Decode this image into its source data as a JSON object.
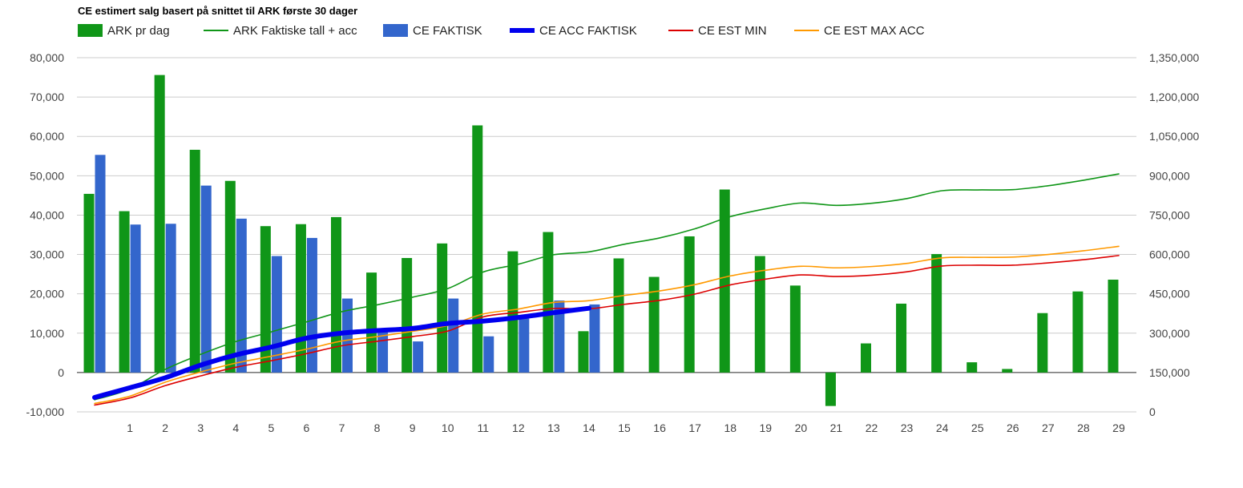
{
  "chart_data": {
    "type": "bar",
    "title": "CE estimert salg basert på snittet til ARK første 30 dager",
    "xlabel": "",
    "ylabel": "",
    "categories": [
      "",
      "1",
      "2",
      "3",
      "4",
      "5",
      "6",
      "7",
      "8",
      "9",
      "10",
      "11",
      "12",
      "13",
      "14",
      "15",
      "16",
      "17",
      "18",
      "19",
      "20",
      "21",
      "22",
      "23",
      "24",
      "25",
      "26",
      "27",
      "28",
      "29"
    ],
    "ylim": [
      -10000,
      80000
    ],
    "y_ticks": [
      -10000,
      0,
      10000,
      20000,
      30000,
      40000,
      50000,
      60000,
      70000,
      80000
    ],
    "y_tick_labels": [
      "-10,000",
      "0",
      "10,000",
      "20,000",
      "30,000",
      "40,000",
      "50,000",
      "60,000",
      "70,000",
      "80,000"
    ],
    "y2lim": [
      0,
      1350000
    ],
    "y2_ticks": [
      0,
      150000,
      300000,
      450000,
      600000,
      750000,
      900000,
      1050000,
      1200000,
      1350000
    ],
    "y2_tick_labels": [
      "0",
      "150,000",
      "300,000",
      "450,000",
      "600,000",
      "750,000",
      "900,000",
      "1,050,000",
      "1,200,000",
      "1,350,000"
    ],
    "grid": true,
    "legend_position": "top-left",
    "series": [
      {
        "name": "ARK pr dag",
        "kind": "bar",
        "axis": "left",
        "color": "#109618",
        "values": [
          45400,
          41000,
          75600,
          56600,
          48700,
          37200,
          37700,
          39500,
          25400,
          29100,
          32800,
          62800,
          30800,
          35700,
          10500,
          29000,
          24300,
          34600,
          46500,
          29600,
          22100,
          -8500,
          7400,
          17500,
          30100,
          2600,
          900,
          15100,
          20600,
          23600
        ]
      },
      {
        "name": "CE FAKTISK",
        "kind": "bar",
        "axis": "left",
        "color": "#3366cc",
        "values": [
          55300,
          37600,
          37800,
          47500,
          39100,
          29600,
          34200,
          18800,
          10600,
          7900,
          18800,
          9200,
          13700,
          18300,
          17300,
          null,
          null,
          null,
          null,
          null,
          null,
          null,
          null,
          null,
          null,
          null,
          null,
          null,
          null,
          null
        ]
      },
      {
        "name": "ARK Faktiske tall + acc",
        "kind": "line",
        "axis": "right",
        "color": "#109618",
        "width": 1.6,
        "values": [
          46000,
          87000,
          162000,
          219000,
          268000,
          305000,
          343000,
          382000,
          408000,
          437000,
          470000,
          533000,
          563000,
          599000,
          610000,
          639000,
          663000,
          698000,
          744000,
          774000,
          796000,
          787000,
          795000,
          813000,
          843000,
          846000,
          847000,
          862000,
          883000,
          907000
        ]
      },
      {
        "name": "CE ACC FAKTISK",
        "kind": "line",
        "axis": "right",
        "color": "#0000ee",
        "width": 6,
        "values": [
          55000,
          92000,
          130000,
          178000,
          217000,
          247000,
          281000,
          300000,
          310000,
          318000,
          337000,
          346000,
          360000,
          378000,
          395000,
          null,
          null,
          null,
          null,
          null,
          null,
          null,
          null,
          null,
          null,
          null,
          null,
          null,
          null,
          null
        ]
      },
      {
        "name": "CE EST MIN",
        "kind": "line",
        "axis": "right",
        "color": "#dc0000",
        "width": 1.6,
        "values": [
          26000,
          53000,
          100000,
          137000,
          170000,
          195000,
          222000,
          252000,
          269000,
          287000,
          308000,
          362000,
          379000,
          394000,
          393000,
          410000,
          425000,
          449000,
          484000,
          506000,
          522000,
          516000,
          521000,
          534000,
          556000,
          559000,
          559000,
          568000,
          580000,
          596000
        ]
      },
      {
        "name": "CE EST MAX ACC",
        "kind": "line",
        "axis": "right",
        "color": "#ff9900",
        "width": 1.6,
        "values": [
          32000,
          60000,
          113000,
          152000,
          186000,
          212000,
          239000,
          270000,
          287000,
          307000,
          329000,
          373000,
          392000,
          417000,
          424000,
          444000,
          461000,
          485000,
          518000,
          540000,
          555000,
          549000,
          554000,
          566000,
          587000,
          589000,
          590000,
          600000,
          614000,
          631000
        ]
      }
    ]
  },
  "legend": [
    {
      "label": "ARK pr dag",
      "color": "#109618",
      "kind": "box"
    },
    {
      "label": "ARK Faktiske tall + acc",
      "color": "#109618",
      "kind": "line"
    },
    {
      "label": "CE FAKTISK",
      "color": "#3366cc",
      "kind": "box"
    },
    {
      "label": "CE ACC FAKTISK",
      "color": "#0000ee",
      "kind": "thick-line"
    },
    {
      "label": "CE EST MIN",
      "color": "#dc0000",
      "kind": "line"
    },
    {
      "label": "CE EST MAX ACC",
      "color": "#ff9900",
      "kind": "line"
    }
  ]
}
